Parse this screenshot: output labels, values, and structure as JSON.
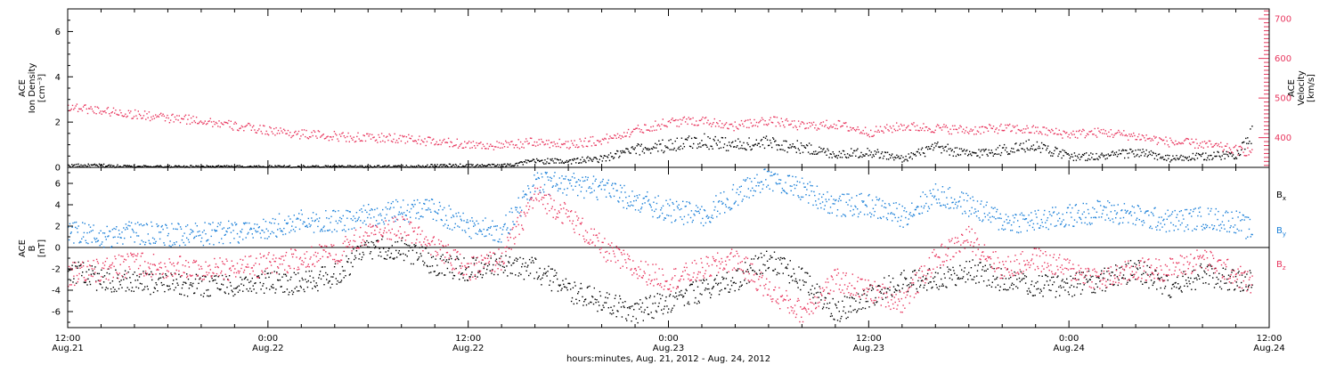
{
  "chart_data": [
    {
      "type": "scatter",
      "panel": "top",
      "ylabel_left": [
        "ACE",
        "Ion Density",
        "[cm⁻³]"
      ],
      "ylabel_right": [
        "ACE",
        "Velocity",
        "[km/s]"
      ],
      "left_axis": {
        "ylim": [
          0,
          7
        ],
        "ticks": [
          0,
          2,
          4,
          6
        ]
      },
      "right_axis": {
        "ylim": [
          325,
          725
        ],
        "ticks": [
          400,
          500,
          600,
          700
        ]
      },
      "series": [
        {
          "color": "#000000",
          "axis": "left",
          "x_hours": [
            0,
            2,
            4,
            6,
            8,
            10,
            12,
            14,
            16,
            18,
            20,
            22,
            24,
            26,
            28,
            30,
            32,
            34,
            36,
            38,
            40,
            42,
            44,
            46,
            48,
            50,
            52,
            54,
            56,
            58,
            60,
            62,
            64,
            66,
            68,
            70,
            71
          ],
          "values": [
            0.1,
            0.1,
            0.05,
            0.05,
            0.05,
            0.05,
            0.05,
            0.05,
            0.05,
            0.05,
            0.05,
            0.1,
            0.1,
            0.1,
            0.3,
            0.3,
            0.4,
            0.8,
            1.0,
            1.2,
            1.0,
            1.1,
            0.9,
            0.6,
            0.7,
            0.4,
            0.9,
            0.6,
            0.8,
            1.0,
            0.5,
            0.5,
            0.7,
            0.4,
            0.5,
            0.6,
            1.5
          ]
        },
        {
          "color": "#e8365e",
          "axis": "right",
          "x_hours": [
            0,
            2,
            4,
            6,
            8,
            10,
            12,
            14,
            16,
            18,
            20,
            22,
            24,
            26,
            28,
            30,
            32,
            34,
            36,
            38,
            40,
            42,
            44,
            46,
            48,
            50,
            52,
            54,
            56,
            58,
            60,
            62,
            64,
            66,
            68,
            70,
            71
          ],
          "values": [
            480,
            470,
            460,
            450,
            445,
            430,
            420,
            410,
            405,
            400,
            400,
            390,
            385,
            380,
            390,
            385,
            395,
            420,
            440,
            445,
            430,
            445,
            430,
            435,
            415,
            430,
            425,
            420,
            425,
            420,
            410,
            415,
            405,
            390,
            385,
            370,
            365
          ]
        }
      ]
    },
    {
      "type": "scatter",
      "panel": "bottom",
      "ylabel_left": [
        "ACE",
        "B",
        "[nT]"
      ],
      "ylim": [
        -7.5,
        7.5
      ],
      "ticks": [
        -6,
        -4,
        -2,
        0,
        2,
        4,
        6
      ],
      "legend": [
        {
          "label": "Bx",
          "main": "B",
          "sub": "x",
          "color": "#000000"
        },
        {
          "label": "By",
          "main": "B",
          "sub": "y",
          "color": "#1a7fd8"
        },
        {
          "label": "Bz",
          "main": "B",
          "sub": "z",
          "color": "#e8365e"
        }
      ],
      "series": [
        {
          "color": "#000000",
          "x_hours": [
            0,
            2,
            4,
            6,
            8,
            10,
            12,
            14,
            16,
            18,
            20,
            22,
            24,
            26,
            28,
            30,
            32,
            34,
            36,
            38,
            40,
            42,
            44,
            46,
            48,
            50,
            52,
            54,
            56,
            58,
            60,
            62,
            64,
            66,
            68,
            70,
            71
          ],
          "values": [
            -2,
            -3,
            -3.2,
            -3.3,
            -3.5,
            -3.4,
            -3.2,
            -3.3,
            -2.5,
            0,
            0,
            -1.5,
            -2,
            -1.5,
            -2,
            -4,
            -5,
            -6,
            -5,
            -4,
            -3,
            -1,
            -3,
            -6,
            -4.5,
            -3,
            -3,
            -2,
            -3,
            -3.5,
            -3.5,
            -3,
            -2,
            -3.8,
            -2.5,
            -3,
            -3.2
          ]
        },
        {
          "color": "#1a7fd8",
          "x_hours": [
            0,
            2,
            4,
            6,
            8,
            10,
            12,
            14,
            16,
            18,
            20,
            22,
            24,
            26,
            28,
            30,
            32,
            34,
            36,
            38,
            40,
            42,
            44,
            46,
            48,
            50,
            52,
            54,
            56,
            58,
            60,
            62,
            64,
            66,
            68,
            70,
            71
          ],
          "values": [
            1.5,
            1,
            1.5,
            1.2,
            1.3,
            1.5,
            2,
            2.5,
            2.5,
            3,
            3.5,
            3.5,
            2,
            1.5,
            6,
            6,
            5.5,
            4.5,
            3.5,
            3,
            5,
            6.5,
            5.5,
            4,
            4,
            3,
            5,
            4,
            2.5,
            2.5,
            3,
            3.5,
            3,
            2.5,
            2.8,
            2.5,
            1.5
          ]
        },
        {
          "color": "#e8365e",
          "x_hours": [
            0,
            2,
            4,
            6,
            8,
            10,
            12,
            14,
            16,
            18,
            20,
            22,
            24,
            26,
            28,
            30,
            32,
            34,
            36,
            38,
            40,
            42,
            44,
            46,
            48,
            50,
            52,
            54,
            56,
            58,
            60,
            62,
            64,
            66,
            68,
            70,
            71
          ],
          "values": [
            -2.5,
            -2,
            -1.5,
            -1.8,
            -2,
            -2,
            -1.5,
            -1,
            -0.5,
            1.5,
            2,
            0,
            -2,
            -1,
            5,
            3,
            0,
            -2,
            -3,
            -2,
            -1,
            -4,
            -6,
            -3,
            -4,
            -5,
            -1,
            1,
            -2,
            -1,
            -2,
            -3,
            -2,
            -2,
            -1,
            -2.5,
            -3.5
          ]
        }
      ]
    }
  ],
  "x_axis": {
    "range_hours": [
      0,
      72
    ],
    "major_ticks": [
      {
        "hour": 0,
        "time": "12:00",
        "date": "Aug.21"
      },
      {
        "hour": 12,
        "time": "0:00",
        "date": "Aug.22"
      },
      {
        "hour": 24,
        "time": "12:00",
        "date": "Aug.22"
      },
      {
        "hour": 36,
        "time": "0:00",
        "date": "Aug.23"
      },
      {
        "hour": 48,
        "time": "12:00",
        "date": "Aug.23"
      },
      {
        "hour": 60,
        "time": "0:00",
        "date": "Aug.24"
      },
      {
        "hour": 72,
        "time": "12:00",
        "date": "Aug.24"
      }
    ],
    "label": "hours:minutes, Aug. 21, 2012 - Aug. 24, 2012"
  }
}
